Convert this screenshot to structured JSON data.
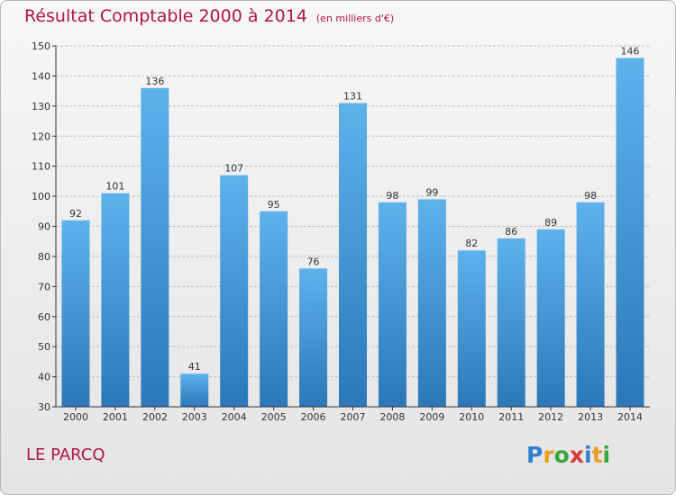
{
  "title": "Résultat Comptable 2000 à 2014",
  "subtitle": "(en milliers d'€)",
  "commune": "LE PARCQ",
  "logo": {
    "text": "Proxiti",
    "letters": [
      {
        "ch": "P",
        "color": "#2f7fd0"
      },
      {
        "ch": "r",
        "color": "#e8a020"
      },
      {
        "ch": "o",
        "color": "#3aa63a"
      },
      {
        "ch": "x",
        "color": "#d83a3a"
      },
      {
        "ch": "i",
        "color": "#2f7fd0"
      },
      {
        "ch": "t",
        "color": "#e8a020"
      },
      {
        "ch": "i",
        "color": "#3aa63a"
      }
    ]
  },
  "colors": {
    "bar_top": "#5eb2ec",
    "bar_bottom": "#2b78b8",
    "title": "#b0124d",
    "grid": "#bdbdbd",
    "axis": "#333333"
  },
  "chart_data": {
    "type": "bar",
    "categories": [
      "2000",
      "2001",
      "2002",
      "2003",
      "2004",
      "2005",
      "2006",
      "2007",
      "2008",
      "2009",
      "2010",
      "2011",
      "2012",
      "2013",
      "2014"
    ],
    "values": [
      92,
      101,
      136,
      41,
      107,
      95,
      76,
      131,
      98,
      99,
      82,
      86,
      89,
      98,
      146
    ],
    "ylim": [
      30,
      150
    ],
    "yticks": [
      30,
      40,
      50,
      60,
      70,
      80,
      90,
      100,
      110,
      120,
      130,
      140,
      150
    ],
    "grid": true,
    "legend": "none"
  }
}
